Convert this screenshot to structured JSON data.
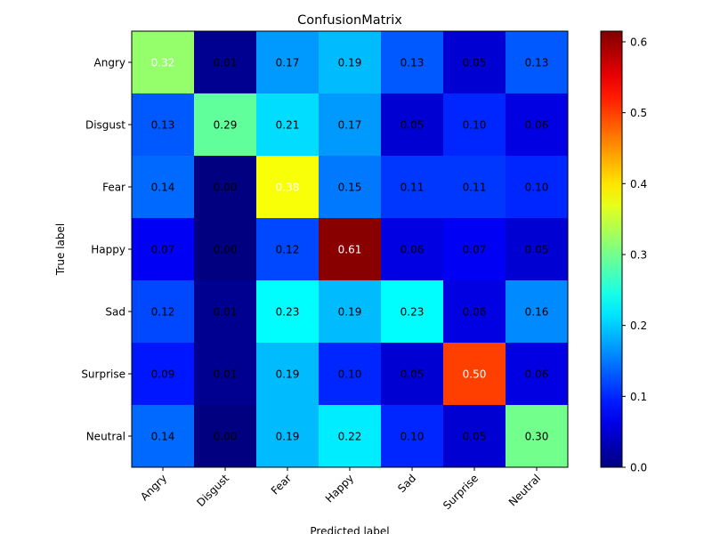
{
  "chart_data": {
    "type": "heatmap",
    "title": "ConfusionMatrix",
    "xlabel": "Predicted label",
    "ylabel": "True label",
    "x_categories": [
      "Angry",
      "Disgust",
      "Fear",
      "Happy",
      "Sad",
      "Surprise",
      "Neutral"
    ],
    "y_categories": [
      "Angry",
      "Disgust",
      "Fear",
      "Happy",
      "Sad",
      "Surprise",
      "Neutral"
    ],
    "values": [
      [
        0.32,
        0.01,
        0.17,
        0.19,
        0.13,
        0.05,
        0.13
      ],
      [
        0.13,
        0.29,
        0.21,
        0.17,
        0.05,
        0.1,
        0.06
      ],
      [
        0.14,
        0.0,
        0.38,
        0.15,
        0.11,
        0.11,
        0.1
      ],
      [
        0.07,
        0.0,
        0.12,
        0.61,
        0.06,
        0.07,
        0.05
      ],
      [
        0.12,
        0.01,
        0.23,
        0.19,
        0.23,
        0.06,
        0.16
      ],
      [
        0.09,
        0.01,
        0.19,
        0.1,
        0.05,
        0.5,
        0.06
      ],
      [
        0.14,
        0.0,
        0.19,
        0.22,
        0.1,
        0.05,
        0.3
      ]
    ],
    "colormap": "jet",
    "colorbar": {
      "range": [
        0.0,
        0.615
      ],
      "ticks": [
        0.0,
        0.1,
        0.2,
        0.3,
        0.4,
        0.5,
        0.6
      ],
      "tick_labels": [
        "0.0",
        "0.1",
        "0.2",
        "0.3",
        "0.4",
        "0.5",
        "0.6"
      ]
    },
    "x_tick_rotation_deg": 45,
    "grid": false
  }
}
